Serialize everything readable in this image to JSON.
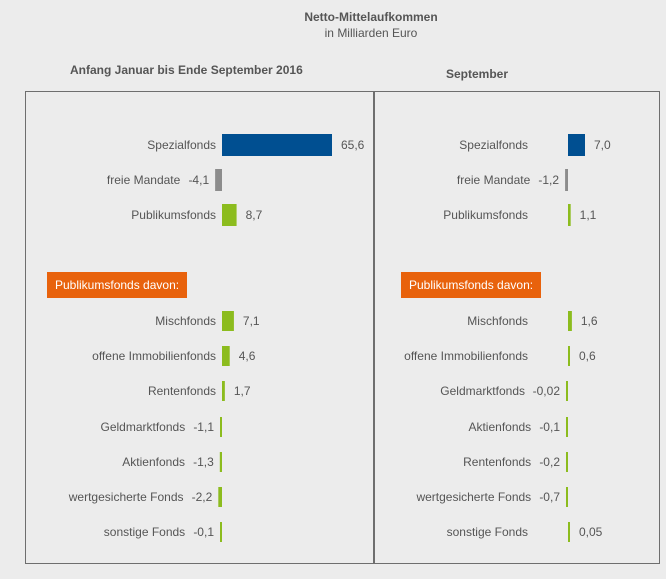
{
  "title": "Netto-Mittelaufkommen",
  "subtitle": "in Milliarden  Euro",
  "colors": {
    "spezial": "#004f91",
    "mandate": "#8c8c8c",
    "publikum": "#8cbc1e",
    "badge": "#e8620c"
  },
  "chart_data": [
    {
      "type": "bar",
      "title": "Anfang  Januar bis Ende  September 2016",
      "badge": "Publikumsfonds davon:",
      "rows": [
        {
          "label": "Spezialfonds",
          "value": 65.6,
          "value_label": "65,6",
          "color": "spezial"
        },
        {
          "label": "freie Mandate",
          "value": -4.1,
          "value_label": "-4,1",
          "color": "mandate"
        },
        {
          "label": "Publikumsfonds",
          "value": 8.7,
          "value_label": "8,7",
          "color": "publikum"
        },
        {
          "label": "Mischfonds",
          "value": 7.1,
          "value_label": "7,1",
          "color": "publikum"
        },
        {
          "label": "offene Immobilienfonds",
          "value": 4.6,
          "value_label": "4,6",
          "color": "publikum"
        },
        {
          "label": "Rentenfonds",
          "value": 1.7,
          "value_label": "1,7",
          "color": "publikum"
        },
        {
          "label": "Geldmarktfonds",
          "value": -1.1,
          "value_label": "-1,1",
          "color": "publikum"
        },
        {
          "label": "Aktienfonds",
          "value": -1.3,
          "value_label": "-1,3",
          "color": "publikum"
        },
        {
          "label": "wertgesicherte Fonds",
          "value": -2.2,
          "value_label": "-2,2",
          "color": "publikum"
        },
        {
          "label": "sonstige Fonds",
          "value": -0.1,
          "value_label": "-0,1",
          "color": "publikum"
        }
      ]
    },
    {
      "type": "bar",
      "title": "September",
      "badge": "Publikumsfonds davon:",
      "rows": [
        {
          "label": "Spezialfonds",
          "value": 7.0,
          "value_label": "7,0",
          "color": "spezial"
        },
        {
          "label": "freie Mandate",
          "value": -1.2,
          "value_label": "-1,2",
          "color": "mandate"
        },
        {
          "label": "Publikumsfonds",
          "value": 1.1,
          "value_label": "1,1",
          "color": "publikum"
        },
        {
          "label": "Mischfonds",
          "value": 1.6,
          "value_label": "1,6",
          "color": "publikum"
        },
        {
          "label": "offene Immobilienfonds",
          "value": 0.6,
          "value_label": "0,6",
          "color": "publikum"
        },
        {
          "label": "Geldmarktfonds",
          "value": -0.02,
          "value_label": "-0,02",
          "color": "publikum"
        },
        {
          "label": "Aktienfonds",
          "value": -0.1,
          "value_label": "-0,1",
          "color": "publikum"
        },
        {
          "label": "Rentenfonds",
          "value": -0.2,
          "value_label": "-0,2",
          "color": "publikum"
        },
        {
          "label": "wertgesicherte Fonds",
          "value": -0.7,
          "value_label": "-0,7",
          "color": "publikum"
        },
        {
          "label": "sonstige Fonds",
          "value": 0.05,
          "value_label": "0,05",
          "color": "publikum"
        }
      ]
    }
  ]
}
